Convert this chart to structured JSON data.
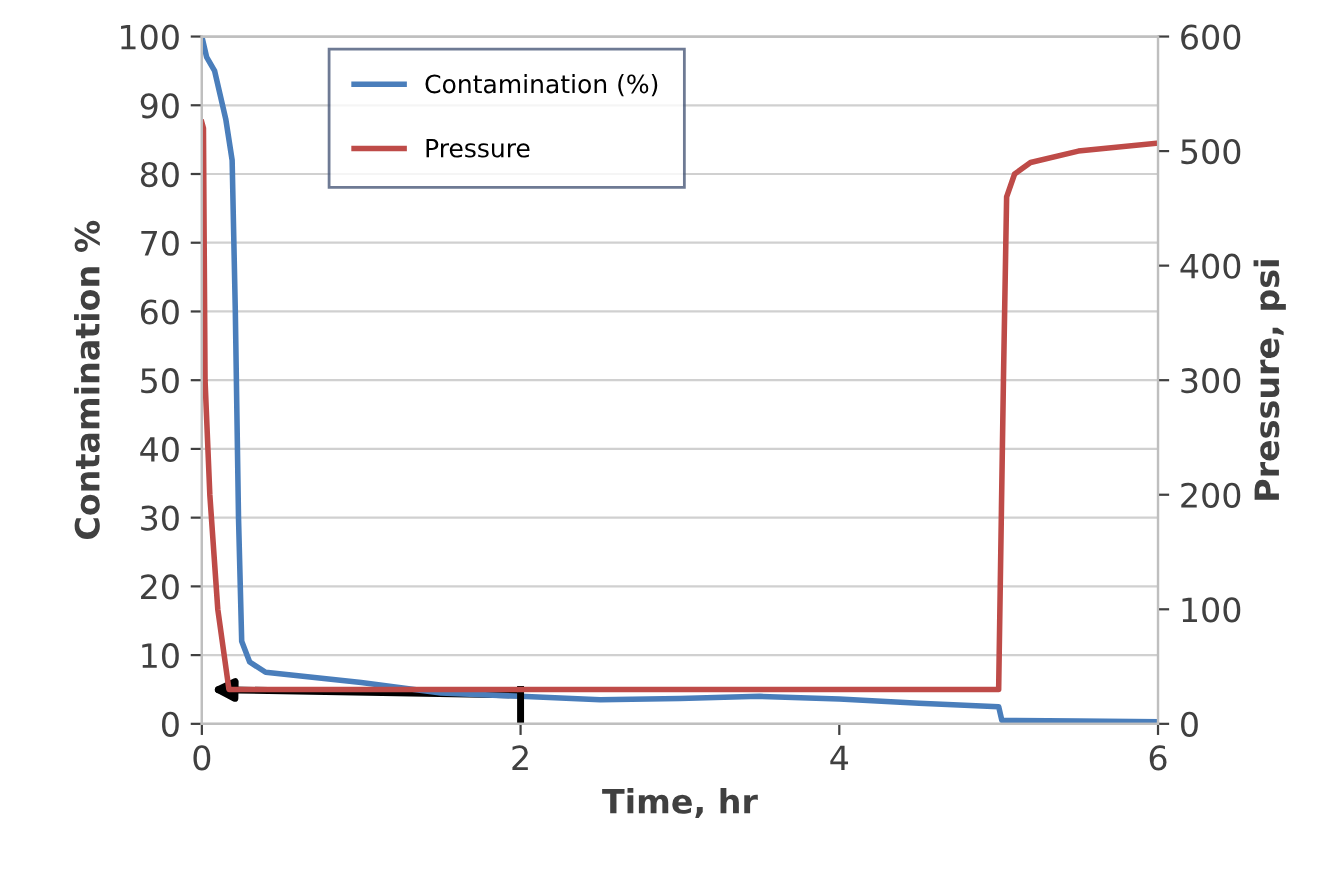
{
  "chart_data": {
    "type": "line",
    "xlabel": "Time, hr",
    "ylabel": "Contamination %",
    "y2label": "Pressure, psi",
    "xlim": [
      0,
      6
    ],
    "xticks": [
      0,
      2,
      4,
      6
    ],
    "ylim": [
      0,
      100
    ],
    "yticks": [
      0,
      10,
      20,
      30,
      40,
      50,
      60,
      70,
      80,
      90,
      100
    ],
    "y2lim": [
      0,
      600
    ],
    "y2ticks": [
      0,
      100,
      200,
      300,
      400,
      500,
      600
    ],
    "grid": "y",
    "legend": "top left",
    "marker": "none",
    "line_style": "solid",
    "series": [
      {
        "name": "Contamination (%)",
        "color": "#4a7ebb",
        "x": [
          0,
          0.03,
          0.08,
          0.15,
          0.19,
          0.21,
          0.23,
          0.25,
          0.3,
          0.4,
          1,
          1.5,
          2,
          2.5,
          3,
          3.5,
          4,
          4.5,
          5,
          5.02,
          5.5,
          6
        ],
        "values": [
          100,
          97,
          95,
          88,
          82,
          60,
          30,
          12,
          9,
          7.5,
          6,
          4.5,
          4,
          3.5,
          3.7,
          4,
          3.6,
          3,
          2.5,
          0.5,
          0.4,
          0.3
        ]
      },
      {
        "name": "Pressure",
        "color": "#be4b48",
        "axis": "y2",
        "x": [
          0,
          0.01,
          0.02,
          0.05,
          0.1,
          0.17,
          0.3,
          1,
          2,
          3,
          4,
          5,
          5.03,
          5.05,
          5.1,
          5.2,
          5.5,
          6
        ],
        "values": [
          525,
          520,
          300,
          200,
          100,
          30,
          30,
          30,
          30,
          30,
          30,
          30,
          300,
          460,
          480,
          490,
          500,
          507
        ]
      }
    ]
  }
}
